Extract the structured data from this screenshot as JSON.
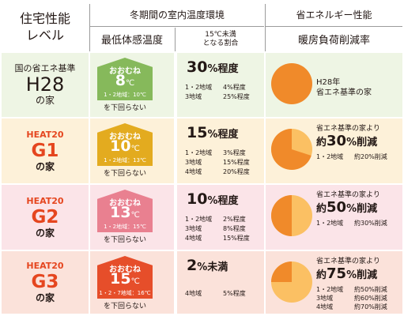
{
  "header": {
    "level_line1": "住宅性能",
    "level_line2": "レベル",
    "winter_env": "冬期間の室内温度環境",
    "min_temp": "最低体感温度",
    "ratio_line1": "15℃未満",
    "ratio_line2": "となる割合",
    "energy_perf": "省エネルギー性能",
    "reduction_rate": "暖房負荷削減率"
  },
  "colors": {
    "h28_bg": "#eef5e4",
    "g1_bg": "#fdf1d9",
    "g2_bg": "#fbe4e8",
    "g3_bg": "#fbe2da",
    "h28_house": "#86b95b",
    "g1_house": "#e3ab1f",
    "g2_house": "#e98090",
    "g3_house": "#e64e2a",
    "level_text": "#e5461f",
    "pie_dark": "#f08a2a",
    "pie_light": "#fbc063"
  },
  "rows": [
    {
      "id": "h28",
      "level_small": "国の省エネ基準",
      "level_big": "H28",
      "level_bottom": "の家",
      "house_about": "おおむね",
      "house_temp": "8",
      "house_unit": "℃",
      "house_sub": "1・2地域：10℃",
      "not_below": "を下回らない",
      "ratio_value": "30",
      "ratio_suffix": "%程度",
      "ratio_lines": [
        {
          "region": "1・2地域",
          "pct": "4%程度"
        },
        {
          "region": "3地域",
          "pct": "25%程度"
        }
      ],
      "reduction_pct": 0,
      "red_lines": [
        "H28年",
        "省エネ基準の家"
      ]
    },
    {
      "id": "g1",
      "level_small": "HEAT20",
      "level_big": "G1",
      "level_bottom": "の家",
      "house_about": "おおむね",
      "house_temp": "10",
      "house_unit": "℃",
      "house_sub": "1・2地域：13℃",
      "not_below": "を下回らない",
      "ratio_value": "15",
      "ratio_suffix": "%程度",
      "ratio_lines": [
        {
          "region": "1・2地域",
          "pct": "3%程度"
        },
        {
          "region": "3地域",
          "pct": "15%程度"
        },
        {
          "region": "4地域",
          "pct": "20%程度"
        }
      ],
      "reduction_pct": 30,
      "red_head": "省エネ基準の家より",
      "red_pre": "約",
      "red_value": "30",
      "red_suffix": "%削減",
      "red_notes": [
        {
          "region": "1・2地域",
          "pct": "約20%削減"
        }
      ]
    },
    {
      "id": "g2",
      "level_small": "HEAT20",
      "level_big": "G2",
      "level_bottom": "の家",
      "house_about": "おおむね",
      "house_temp": "13",
      "house_unit": "℃",
      "house_sub": "1・2地域：15℃",
      "not_below": "を下回らない",
      "ratio_value": "10",
      "ratio_suffix": "%程度",
      "ratio_lines": [
        {
          "region": "1・2地域",
          "pct": "2%程度"
        },
        {
          "region": "3地域",
          "pct": "8%程度"
        },
        {
          "region": "4地域",
          "pct": "15%程度"
        }
      ],
      "reduction_pct": 50,
      "red_head": "省エネ基準の家より",
      "red_pre": "約",
      "red_value": "50",
      "red_suffix": "%削減",
      "red_notes": [
        {
          "region": "1・2地域",
          "pct": "約30%削減"
        }
      ]
    },
    {
      "id": "g3",
      "level_small": "HEAT20",
      "level_big": "G3",
      "level_bottom": "の家",
      "house_about": "おおむね",
      "house_temp": "15",
      "house_unit": "℃",
      "house_sub": "1・2・7地域：16℃",
      "not_below": "を下回らない",
      "ratio_value": "2",
      "ratio_suffix": "%未満",
      "ratio_lines": [
        {
          "region": "4地域",
          "pct": "5%程度"
        }
      ],
      "reduction_pct": 75,
      "red_head": "省エネ基準の家より",
      "red_pre": "約",
      "red_value": "75",
      "red_suffix": "%削減",
      "red_notes": [
        {
          "region": "1・2地域",
          "pct": "約50%削減"
        },
        {
          "region": "3地域",
          "pct": "約60%削減"
        },
        {
          "region": "4地域",
          "pct": "約70%削減"
        }
      ]
    }
  ]
}
